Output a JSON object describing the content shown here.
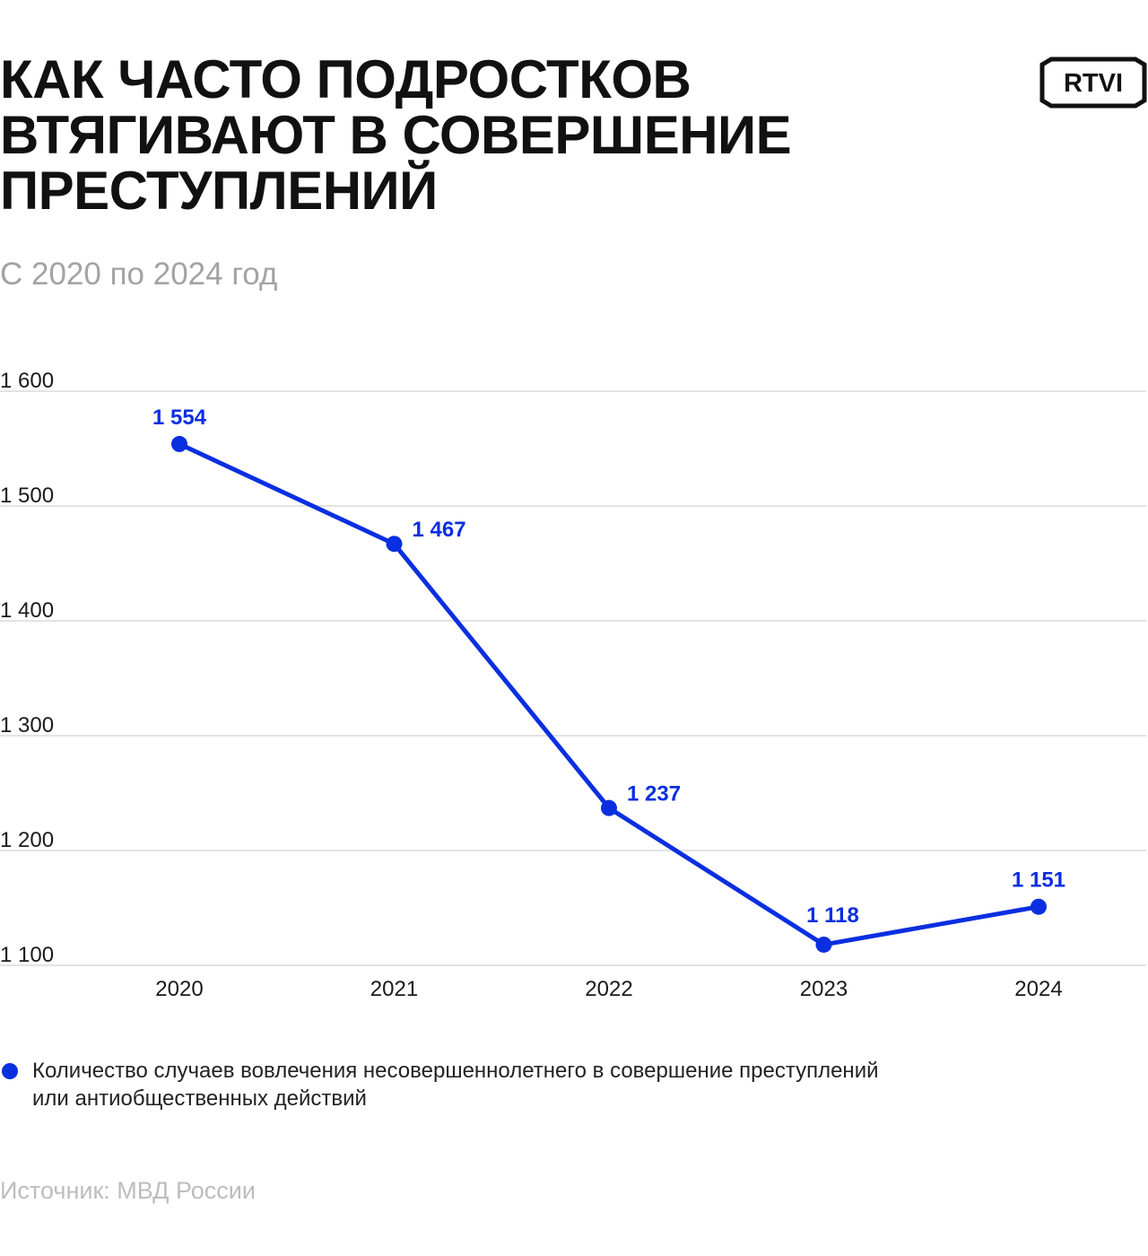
{
  "title_lines": [
    "КАК ЧАСТО ПОДРОСТКОВ",
    "ВТЯГИВАЮТ В СОВЕРШЕНИЕ",
    "ПРЕСТУПЛЕНИЙ"
  ],
  "subtitle": "С 2020 по 2024 год",
  "logo_text": "RTVI",
  "legend_label": "Количество случаев вовлечения несовершеннолетнего в совершение преступлений или антиобщественных действий",
  "source": "Источник: МВД России",
  "colors": {
    "series": "#0a2fe0",
    "label": "#0a2fe0",
    "grid": "#e3e3e3",
    "axis_text": "#1a1a1a"
  },
  "chart_data": {
    "type": "line",
    "title": "КАК ЧАСТО ПОДРОСТКОВ ВТЯГИВАЮТ В СОВЕРШЕНИЕ ПРЕСТУПЛЕНИЙ",
    "subtitle": "С 2020 по 2024 год",
    "categories": [
      "2020",
      "2021",
      "2022",
      "2023",
      "2024"
    ],
    "series": [
      {
        "name": "Количество случаев вовлечения несовершеннолетнего в совершение преступлений или антиобщественных действий",
        "values": [
          1554,
          1467,
          1237,
          1118,
          1151
        ],
        "labels": [
          "1 554",
          "1 467",
          "1 237",
          "1 118",
          "1 151"
        ]
      }
    ],
    "ylim": [
      1100,
      1600
    ],
    "yticks": [
      1600,
      1500,
      1400,
      1300,
      1200,
      1100
    ],
    "ytick_labels": [
      "1 600",
      "1 500",
      "1 400",
      "1 300",
      "1 200",
      "1 100"
    ],
    "grid": true,
    "legend_position": "bottom"
  }
}
